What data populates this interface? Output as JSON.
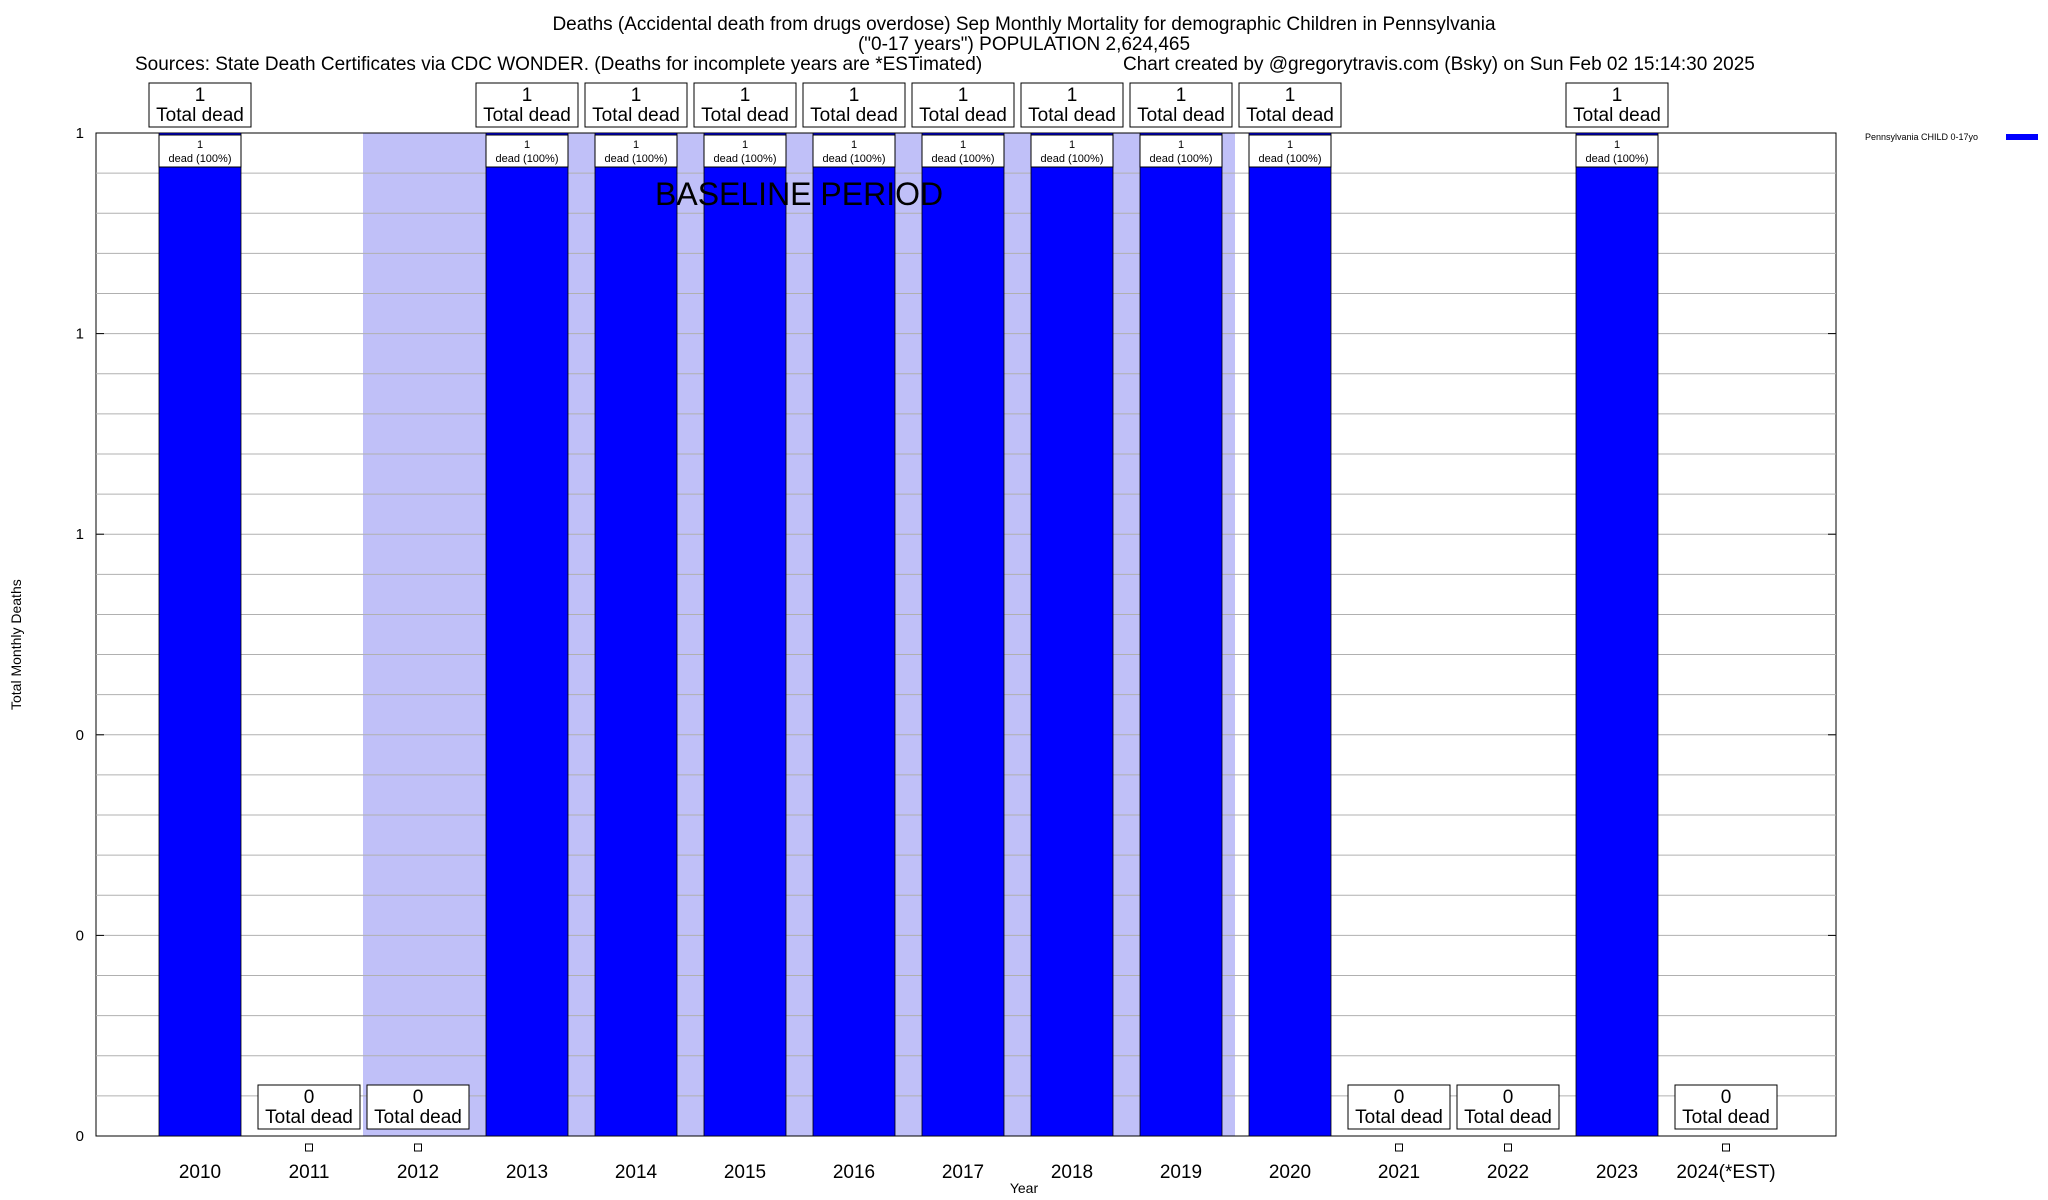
{
  "header": {
    "title_line1": "Deaths (Accidental death from drugs overdose) Sep Monthly Mortality for demographic Children in Pennsylvania",
    "title_line2": "(\"0-17 years\") POPULATION 2,624,465",
    "sources": "Sources: State Death Certificates via CDC WONDER. (Deaths for incomplete years are *ESTimated)",
    "credit": "Chart created by @gregorytravis.com (Bsky) on Sun Feb 02 15:14:30 2025"
  },
  "chart_data": {
    "type": "bar",
    "title": "Deaths (Accidental death from drugs overdose) Sep Monthly Mortality for demographic Children in Pennsylvania",
    "xlabel": "Year",
    "ylabel": "Total Monthly Deaths",
    "categories": [
      "2010",
      "2011",
      "2012",
      "2013",
      "2014",
      "2015",
      "2016",
      "2017",
      "2018",
      "2019",
      "2020",
      "2021",
      "2022",
      "2023",
      "2024(*EST)"
    ],
    "series": [
      {
        "name": "Pennsylvania CHILD 0-17yo",
        "color": "#0000ff",
        "values": [
          1,
          0,
          0,
          1,
          1,
          1,
          1,
          1,
          1,
          1,
          1,
          0,
          0,
          1,
          0
        ]
      }
    ],
    "ylim": [
      0,
      1
    ],
    "y_tick_labels": [
      "0",
      "0",
      "0",
      "1",
      "1",
      "1"
    ],
    "top_label_text": "Total dead",
    "inner_label_text": "dead (100%)",
    "baseline_period": {
      "label": "BASELINE PERIOD",
      "from": "2012",
      "to": "2020",
      "color": "#c0c0f8"
    },
    "grid": true,
    "legend_position": "top-right"
  }
}
